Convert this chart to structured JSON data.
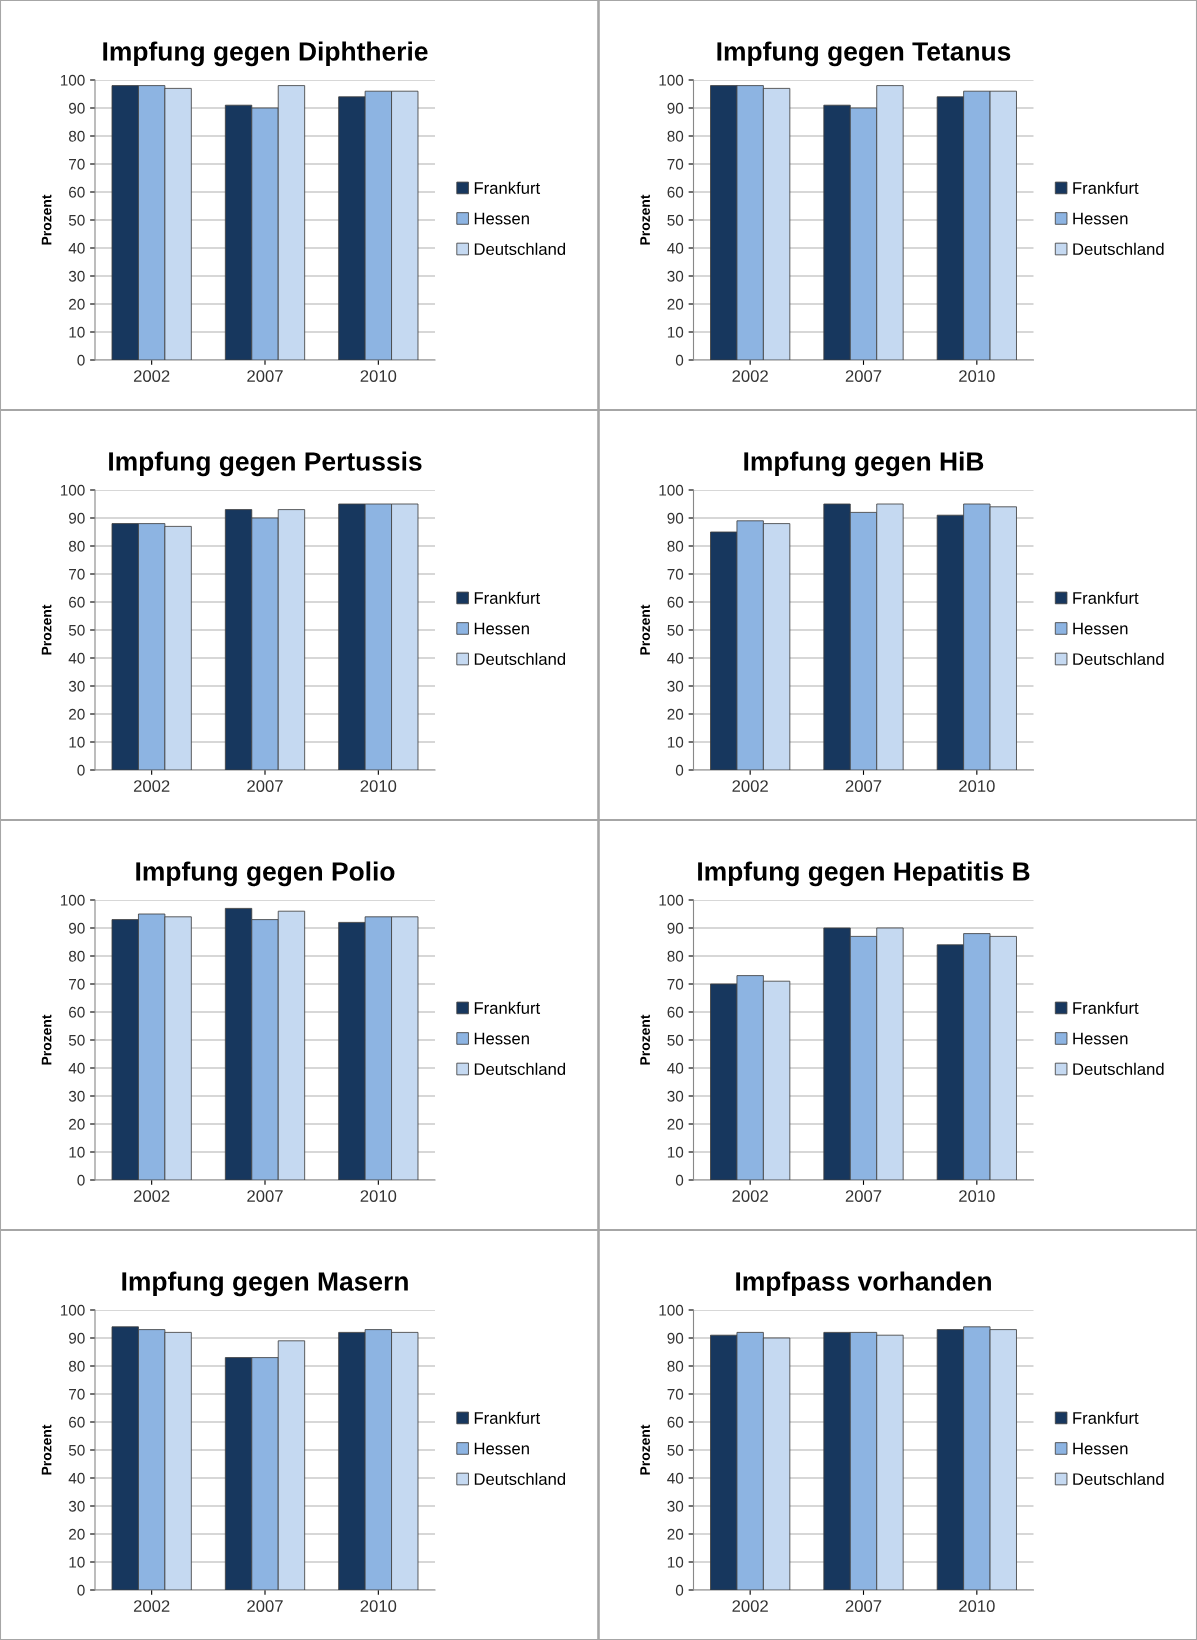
{
  "chart_data": [
    {
      "type": "bar",
      "title": "Impfung gegen Diphtherie",
      "ylabel": "Prozent",
      "categories": [
        "2002",
        "2007",
        "2010"
      ],
      "ylim": [
        0,
        100
      ],
      "yticks": [
        0,
        10,
        20,
        30,
        40,
        50,
        60,
        70,
        80,
        90,
        100
      ],
      "grid": "y",
      "legend": "right",
      "series": [
        {
          "name": "Frankfurt",
          "color": "#17375e",
          "values": [
            98,
            91,
            94
          ]
        },
        {
          "name": "Hessen",
          "color": "#8db4e2",
          "values": [
            98,
            90,
            96
          ]
        },
        {
          "name": "Deutschland",
          "color": "#c5d9f1",
          "values": [
            97,
            98,
            96
          ]
        }
      ]
    },
    {
      "type": "bar",
      "title": "Impfung gegen Tetanus",
      "ylabel": "Prozent",
      "categories": [
        "2002",
        "2007",
        "2010"
      ],
      "ylim": [
        0,
        100
      ],
      "yticks": [
        0,
        10,
        20,
        30,
        40,
        50,
        60,
        70,
        80,
        90,
        100
      ],
      "grid": "y",
      "legend": "right",
      "series": [
        {
          "name": "Frankfurt",
          "color": "#17375e",
          "values": [
            98,
            91,
            94
          ]
        },
        {
          "name": "Hessen",
          "color": "#8db4e2",
          "values": [
            98,
            90,
            96
          ]
        },
        {
          "name": "Deutschland",
          "color": "#c5d9f1",
          "values": [
            97,
            98,
            96
          ]
        }
      ]
    },
    {
      "type": "bar",
      "title": "Impfung gegen Pertussis",
      "ylabel": "Prozent",
      "categories": [
        "2002",
        "2007",
        "2010"
      ],
      "ylim": [
        0,
        100
      ],
      "yticks": [
        0,
        10,
        20,
        30,
        40,
        50,
        60,
        70,
        80,
        90,
        100
      ],
      "grid": "y",
      "legend": "right",
      "series": [
        {
          "name": "Frankfurt",
          "color": "#17375e",
          "values": [
            88,
            93,
            95
          ]
        },
        {
          "name": "Hessen",
          "color": "#8db4e2",
          "values": [
            88,
            90,
            95
          ]
        },
        {
          "name": "Deutschland",
          "color": "#c5d9f1",
          "values": [
            87,
            93,
            95
          ]
        }
      ]
    },
    {
      "type": "bar",
      "title": "Impfung gegen HiB",
      "ylabel": "Prozent",
      "categories": [
        "2002",
        "2007",
        "2010"
      ],
      "ylim": [
        0,
        100
      ],
      "yticks": [
        0,
        10,
        20,
        30,
        40,
        50,
        60,
        70,
        80,
        90,
        100
      ],
      "grid": "y",
      "legend": "right",
      "series": [
        {
          "name": "Frankfurt",
          "color": "#17375e",
          "values": [
            85,
            95,
            91
          ]
        },
        {
          "name": "Hessen",
          "color": "#8db4e2",
          "values": [
            89,
            92,
            95
          ]
        },
        {
          "name": "Deutschland",
          "color": "#c5d9f1",
          "values": [
            88,
            95,
            94
          ]
        }
      ]
    },
    {
      "type": "bar",
      "title": "Impfung gegen Polio",
      "ylabel": "Prozent",
      "categories": [
        "2002",
        "2007",
        "2010"
      ],
      "ylim": [
        0,
        100
      ],
      "yticks": [
        0,
        10,
        20,
        30,
        40,
        50,
        60,
        70,
        80,
        90,
        100
      ],
      "grid": "y",
      "legend": "right",
      "series": [
        {
          "name": "Frankfurt",
          "color": "#17375e",
          "values": [
            93,
            97,
            92
          ]
        },
        {
          "name": "Hessen",
          "color": "#8db4e2",
          "values": [
            95,
            93,
            94
          ]
        },
        {
          "name": "Deutschland",
          "color": "#c5d9f1",
          "values": [
            94,
            96,
            94
          ]
        }
      ]
    },
    {
      "type": "bar",
      "title": "Impfung gegen Hepatitis B",
      "ylabel": "Prozent",
      "categories": [
        "2002",
        "2007",
        "2010"
      ],
      "ylim": [
        0,
        100
      ],
      "yticks": [
        0,
        10,
        20,
        30,
        40,
        50,
        60,
        70,
        80,
        90,
        100
      ],
      "grid": "y",
      "legend": "right",
      "series": [
        {
          "name": "Frankfurt",
          "color": "#17375e",
          "values": [
            70,
            90,
            84
          ]
        },
        {
          "name": "Hessen",
          "color": "#8db4e2",
          "values": [
            73,
            87,
            88
          ]
        },
        {
          "name": "Deutschland",
          "color": "#c5d9f1",
          "values": [
            71,
            90,
            87
          ]
        }
      ]
    },
    {
      "type": "bar",
      "title": "Impfung gegen Masern",
      "ylabel": "Prozent",
      "categories": [
        "2002",
        "2007",
        "2010"
      ],
      "ylim": [
        0,
        100
      ],
      "yticks": [
        0,
        10,
        20,
        30,
        40,
        50,
        60,
        70,
        80,
        90,
        100
      ],
      "grid": "y",
      "legend": "right",
      "series": [
        {
          "name": "Frankfurt",
          "color": "#17375e",
          "values": [
            94,
            83,
            92
          ]
        },
        {
          "name": "Hessen",
          "color": "#8db4e2",
          "values": [
            93,
            83,
            93
          ]
        },
        {
          "name": "Deutschland",
          "color": "#c5d9f1",
          "values": [
            92,
            89,
            92
          ]
        }
      ]
    },
    {
      "type": "bar",
      "title": "Impfpass vorhanden",
      "ylabel": "Prozent",
      "categories": [
        "2002",
        "2007",
        "2010"
      ],
      "ylim": [
        0,
        100
      ],
      "yticks": [
        0,
        10,
        20,
        30,
        40,
        50,
        60,
        70,
        80,
        90,
        100
      ],
      "grid": "y",
      "legend": "right",
      "series": [
        {
          "name": "Frankfurt",
          "color": "#17375e",
          "values": [
            91,
            92,
            93
          ]
        },
        {
          "name": "Hessen",
          "color": "#8db4e2",
          "values": [
            92,
            92,
            94
          ]
        },
        {
          "name": "Deutschland",
          "color": "#c5d9f1",
          "values": [
            90,
            91,
            93
          ]
        }
      ]
    }
  ]
}
